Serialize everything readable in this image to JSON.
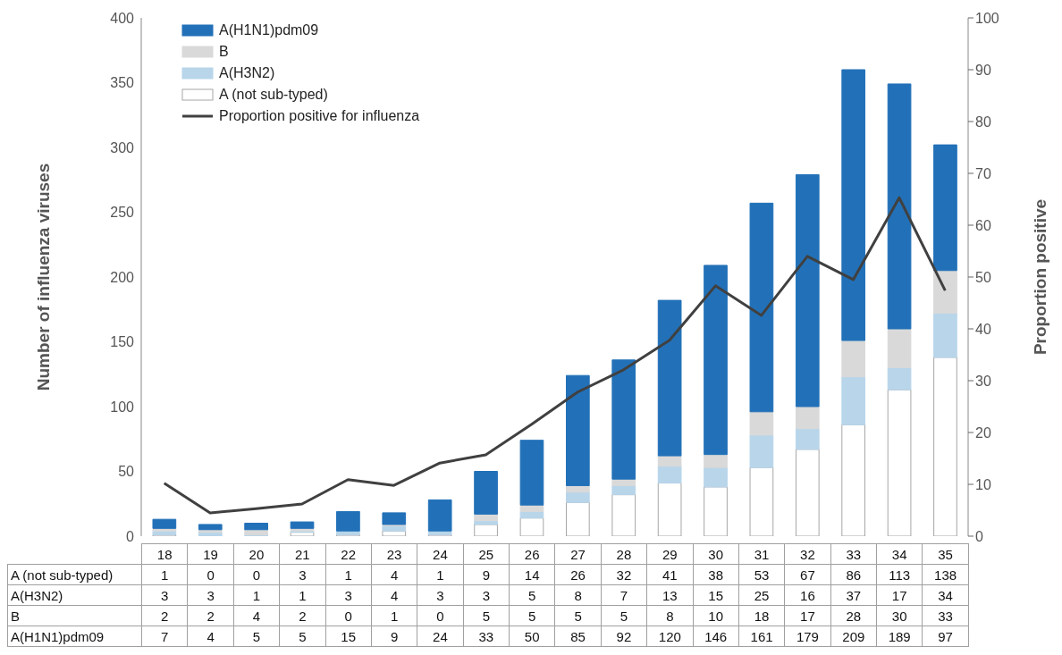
{
  "chart_data": {
    "type": "bar",
    "stacked": true,
    "ylabel": "Number of influenza viruses",
    "y2label": "Proportion positive",
    "categories": [
      "18",
      "19",
      "20",
      "21",
      "22",
      "23",
      "24",
      "25",
      "26",
      "27",
      "28",
      "29",
      "30",
      "31",
      "32",
      "33",
      "34",
      "35"
    ],
    "series": [
      {
        "name": "A (not sub-typed)",
        "color": "#ffffff",
        "values": [
          1,
          0,
          0,
          3,
          1,
          4,
          1,
          9,
          14,
          26,
          32,
          41,
          38,
          53,
          67,
          86,
          113,
          138
        ],
        "value_labels": [
          "1",
          "0",
          "0",
          "3",
          "1",
          "4",
          "1",
          "9",
          "14",
          "26",
          "32",
          "41",
          "38",
          "53",
          "67",
          "86",
          "113",
          "138"
        ]
      },
      {
        "name": "A(H3N2)",
        "color": "#b8d5ea",
        "values": [
          3,
          3,
          1,
          1,
          3,
          4,
          3,
          3,
          5,
          8,
          7,
          13,
          15,
          25,
          16,
          37,
          17,
          34
        ],
        "value_labels": [
          "3",
          "3",
          "1",
          "1",
          "3",
          "4",
          "3",
          "3",
          "5",
          "8",
          "7",
          "13",
          "15",
          "25",
          "16",
          "37",
          "17",
          "34"
        ]
      },
      {
        "name": "B",
        "color": "#d9d9d9",
        "values": [
          2,
          2,
          4,
          2,
          0,
          1,
          0,
          5,
          5,
          5,
          5,
          8,
          10,
          18,
          17,
          28,
          30,
          33
        ],
        "value_labels": [
          "2",
          "2",
          "4",
          "2",
          "0",
          "1",
          "0",
          "5",
          "5",
          "5",
          "5",
          "8",
          "10",
          "18",
          "17",
          "28",
          "30",
          "33"
        ]
      },
      {
        "name": "A(H1N1)pdm09",
        "color": "#2271b8",
        "values": [
          7,
          4,
          5,
          5,
          15,
          9,
          24,
          33,
          50,
          85,
          92,
          120,
          146,
          161,
          179,
          209,
          189,
          97
        ],
        "value_labels": [
          "7",
          "4",
          "5",
          "5",
          "15",
          "9",
          "24",
          "33",
          "50",
          "85",
          "92",
          "120",
          "146",
          "161",
          "179",
          "209",
          "189",
          "97"
        ]
      },
      {
        "name": "Proportion positive for influenza",
        "type": "line",
        "axis": "y2",
        "color": "#404040",
        "values": [
          10.2,
          4.5,
          5.3,
          6.2,
          10.9,
          9.8,
          14.1,
          15.7,
          21.6,
          27.8,
          32.1,
          37.8,
          48.3,
          42.6,
          54.0,
          49.5,
          65.3,
          47.4
        ]
      }
    ],
    "ylim": [
      0,
      400
    ],
    "yticks": [
      0,
      50,
      100,
      150,
      200,
      250,
      300,
      350,
      400
    ],
    "y2lim": [
      0,
      100
    ],
    "y2ticks": [
      0,
      10,
      20,
      30,
      40,
      50,
      60,
      70,
      80,
      90,
      100
    ],
    "legend": "top left",
    "marker": "none",
    "line_style": "solid"
  }
}
